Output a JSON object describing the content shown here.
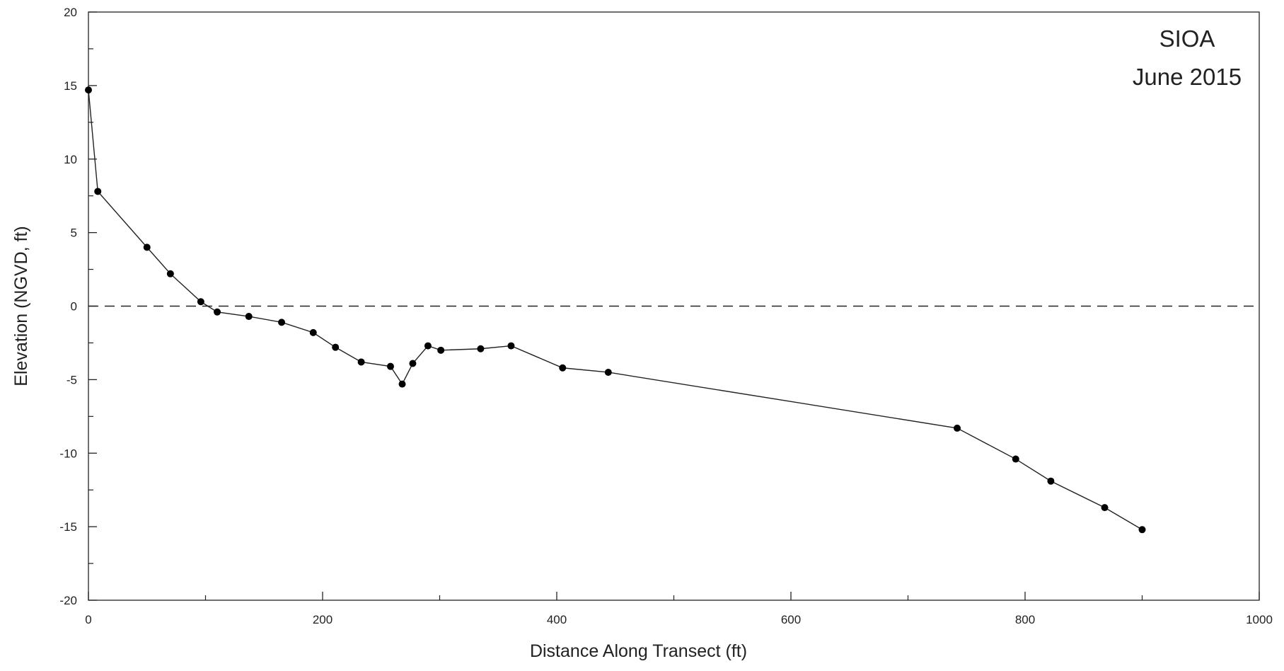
{
  "chart_data": {
    "type": "line",
    "title": "",
    "annotations": [
      "SIOA",
      "June 2015"
    ],
    "xlabel": "Distance Along Transect (ft)",
    "ylabel": "Elevation (NGVD, ft)",
    "xlim": [
      0,
      1000
    ],
    "ylim": [
      -20,
      20
    ],
    "x_ticks": [
      0,
      200,
      400,
      600,
      800,
      1000
    ],
    "y_ticks": [
      -20,
      -15,
      -10,
      -5,
      0,
      5,
      10,
      15,
      20
    ],
    "grid": false,
    "legend": "none",
    "reference_line": {
      "y": 0,
      "style": "dashed"
    },
    "series": [
      {
        "x": [
          0,
          8,
          50,
          70,
          96,
          110,
          137,
          165,
          192,
          211,
          233,
          258,
          268,
          277,
          290,
          301,
          335,
          361,
          405,
          444,
          742,
          792,
          822,
          868,
          900
        ],
        "y": [
          14.7,
          7.8,
          4.0,
          2.2,
          0.3,
          -0.4,
          -0.7,
          -1.1,
          -1.8,
          -2.8,
          -3.8,
          -4.1,
          -5.3,
          -3.9,
          -2.7,
          -3.0,
          -2.9,
          -2.7,
          -4.2,
          -4.5,
          -8.3,
          -10.4,
          -11.9,
          -13.7,
          -15.2
        ]
      }
    ],
    "colors": {
      "line": "#222222",
      "marker": "#000000",
      "axis": "#222222"
    }
  }
}
